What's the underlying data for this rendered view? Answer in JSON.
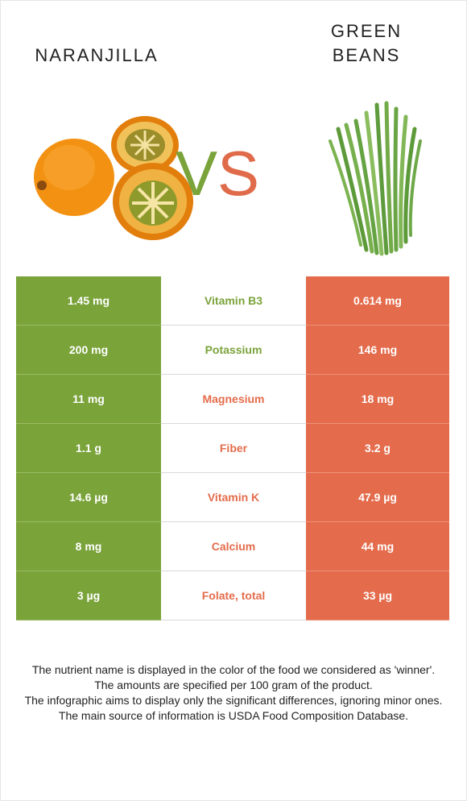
{
  "left_food": {
    "name": "NARANJILLA",
    "icon": "naranjilla-image",
    "color": "#7aa33a"
  },
  "right_food": {
    "name_line1": "GREEN",
    "name_line2": "BEANS",
    "icon": "green-beans-image",
    "color": "#e46c4c"
  },
  "vs": {
    "v": "V",
    "s": "S"
  },
  "rows": [
    {
      "left": "1.45 mg",
      "nutrient": "Vitamin B3",
      "right": "0.614 mg",
      "winner": "left"
    },
    {
      "left": "200 mg",
      "nutrient": "Potassium",
      "right": "146 mg",
      "winner": "left"
    },
    {
      "left": "11 mg",
      "nutrient": "Magnesium",
      "right": "18 mg",
      "winner": "right"
    },
    {
      "left": "1.1 g",
      "nutrient": "Fiber",
      "right": "3.2 g",
      "winner": "right"
    },
    {
      "left": "14.6 µg",
      "nutrient": "Vitamin K",
      "right": "47.9 µg",
      "winner": "right"
    },
    {
      "left": "8 mg",
      "nutrient": "Calcium",
      "right": "44 mg",
      "winner": "right"
    },
    {
      "left": "3 µg",
      "nutrient": "Folate, total",
      "right": "33 µg",
      "winner": "right"
    }
  ],
  "footer": [
    "The nutrient name is displayed in the color of the food we considered as 'winner'.",
    "The amounts are specified per 100 gram of the product.",
    "The infographic aims to display only the significant differences, ignoring minor ones.",
    "The main source of information is USDA Food Composition Database."
  ]
}
